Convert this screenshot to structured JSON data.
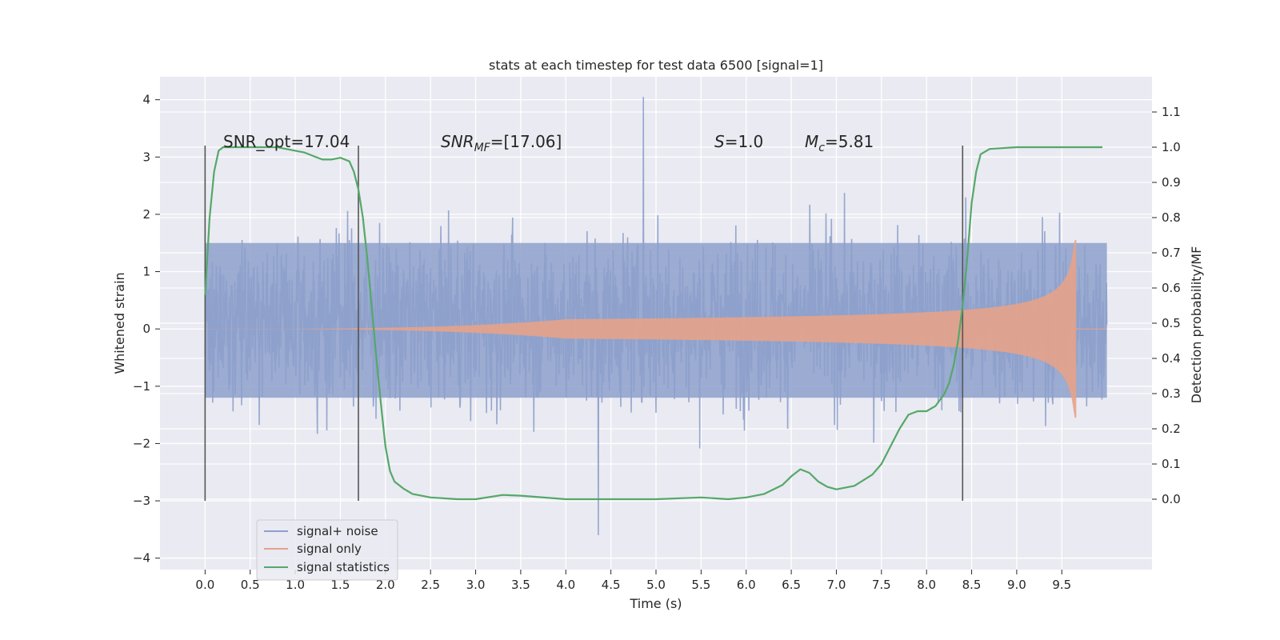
{
  "chart_data": {
    "type": "line",
    "title": "stats at each timestep for test data 6500 [signal=1]",
    "xlabel": "Time (s)",
    "ylabel": "Whitened strain",
    "y2label": "Detection probability/MF",
    "xlim": [
      -0.5,
      10.5
    ],
    "ylim": [
      -4.2,
      4.4
    ],
    "y2lim": [
      -0.2,
      1.2
    ],
    "xticks": [
      0.0,
      0.5,
      1.0,
      1.5,
      2.0,
      2.5,
      3.0,
      3.5,
      4.0,
      4.5,
      5.0,
      5.5,
      6.0,
      6.5,
      7.0,
      7.5,
      8.0,
      8.5,
      9.0,
      9.5
    ],
    "xtick_labels": [
      "0.0",
      "0.5",
      "1.0",
      "1.5",
      "2.0",
      "2.5",
      "3.0",
      "3.5",
      "4.0",
      "4.5",
      "5.0",
      "5.5",
      "6.0",
      "6.5",
      "7.0",
      "7.5",
      "8.0",
      "8.5",
      "9.0",
      "9.5"
    ],
    "yticks": [
      4,
      3,
      2,
      1,
      0,
      -1,
      -2,
      -3,
      -4
    ],
    "ytick_labels": [
      "4",
      "3",
      "2",
      "1",
      "0",
      "−1",
      "−2",
      "−3",
      "−4"
    ],
    "y2ticks": [
      1.1,
      1.0,
      0.9,
      0.8,
      0.7,
      0.6,
      0.5,
      0.4,
      0.3,
      0.2,
      0.1,
      0.0
    ],
    "y2tick_labels": [
      "1.1",
      "1.0",
      "0.9",
      "0.8",
      "0.7",
      "0.6",
      "0.5",
      "0.4",
      "0.3",
      "0.2",
      "0.1",
      "0.0"
    ],
    "grid": true,
    "legend_position": "bottom-left",
    "annotations": [
      {
        "label": "SNR_opt=17.04",
        "x": 0.2,
        "y": 3.2
      },
      {
        "label_main": "SNR",
        "label_sub": "MF",
        "label_rest": "=[17.06]",
        "x": 2.6,
        "y": 3.2
      },
      {
        "label_main": "S",
        "label_rest": "=1.0",
        "x": 5.6,
        "y": 3.2
      },
      {
        "label_main": "M",
        "label_sub": "c",
        "label_rest": "=5.81",
        "x": 6.6,
        "y": 3.2
      }
    ],
    "vlines": [
      0.0,
      1.7,
      8.4
    ],
    "vline_range": [
      -3.0,
      3.2
    ],
    "series": [
      {
        "name": "signal+ noise",
        "color": "#8da0cb",
        "x_range": [
          0.0,
          10.0
        ],
        "band_upper": 1.5,
        "band_lower": -1.2,
        "max_value": 4.05,
        "max_at": 4.86,
        "min_value": -3.8,
        "min_at": 4.36
      },
      {
        "name": "signal only",
        "color": "#e5a28a",
        "x_range": [
          0.0,
          9.68
        ],
        "envelope_start": 0.002,
        "envelope_peak": 1.55,
        "peak_at": 9.66
      },
      {
        "name": "signal statistics",
        "color": "#55a868",
        "axis": "right",
        "x": [
          0.0,
          0.05,
          0.1,
          0.15,
          0.2,
          0.3,
          0.5,
          0.8,
          1.0,
          1.1,
          1.2,
          1.3,
          1.4,
          1.5,
          1.6,
          1.65,
          1.7,
          1.75,
          1.8,
          1.85,
          1.9,
          1.95,
          2.0,
          2.05,
          2.1,
          2.2,
          2.3,
          2.5,
          2.8,
          3.0,
          3.3,
          3.5,
          4.0,
          4.5,
          5.0,
          5.5,
          5.8,
          6.0,
          6.2,
          6.4,
          6.5,
          6.6,
          6.7,
          6.8,
          6.9,
          7.0,
          7.2,
          7.4,
          7.5,
          7.6,
          7.7,
          7.8,
          7.9,
          8.0,
          8.1,
          8.2,
          8.25,
          8.3,
          8.35,
          8.4,
          8.45,
          8.5,
          8.55,
          8.6,
          8.7,
          9.0,
          9.5,
          9.95
        ],
        "values": [
          0.58,
          0.8,
          0.93,
          0.99,
          1.0,
          1.0,
          1.0,
          1.0,
          0.99,
          0.985,
          0.975,
          0.965,
          0.965,
          0.97,
          0.96,
          0.93,
          0.88,
          0.8,
          0.68,
          0.54,
          0.4,
          0.27,
          0.15,
          0.08,
          0.05,
          0.03,
          0.015,
          0.005,
          0.0,
          0.0,
          0.012,
          0.01,
          0.0,
          0.0,
          0.0,
          0.005,
          0.0,
          0.005,
          0.015,
          0.04,
          0.065,
          0.085,
          0.075,
          0.05,
          0.035,
          0.028,
          0.038,
          0.07,
          0.1,
          0.15,
          0.2,
          0.24,
          0.25,
          0.25,
          0.265,
          0.3,
          0.33,
          0.38,
          0.45,
          0.55,
          0.68,
          0.84,
          0.93,
          0.98,
          0.995,
          1.0,
          1.0,
          1.0
        ]
      }
    ]
  }
}
